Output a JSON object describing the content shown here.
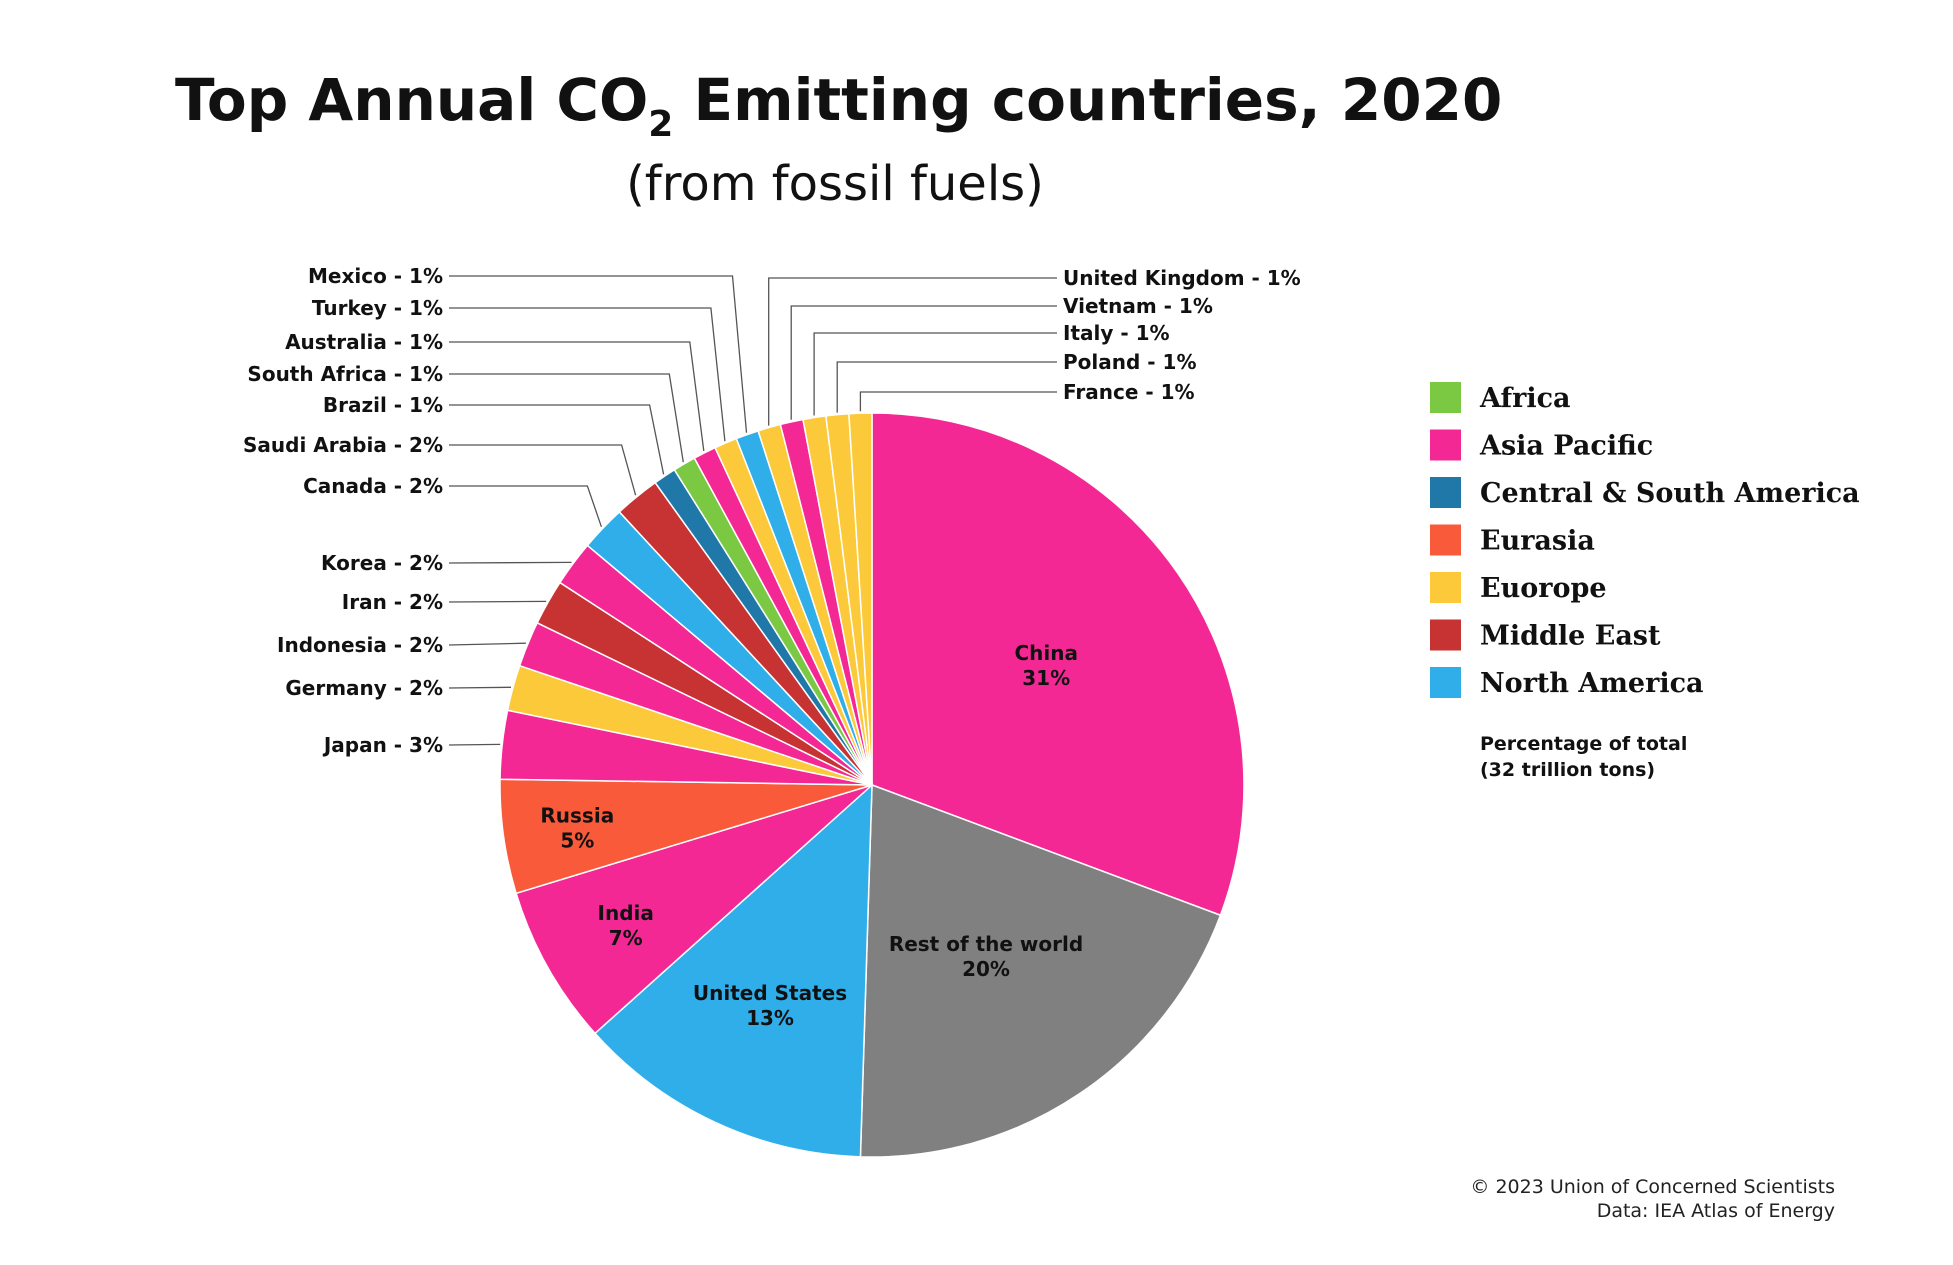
{
  "title_main": "Top Annual CO",
  "title_sub": "2",
  "title_rest": " Emitting countries, 2020",
  "subtitle": "(from fossil fuels)",
  "chart_data": {
    "type": "pie",
    "unit": "%",
    "slices": [
      {
        "label": "China",
        "value": 31,
        "region": "Asia Pacific"
      },
      {
        "label": "Rest of the world",
        "value": 20,
        "region": null
      },
      {
        "label": "United States",
        "value": 13,
        "region": "North America"
      },
      {
        "label": "India",
        "value": 7,
        "region": "Asia Pacific"
      },
      {
        "label": "Russia",
        "value": 5,
        "region": "Eurasia"
      },
      {
        "label": "Japan",
        "value": 3,
        "region": "Asia Pacific"
      },
      {
        "label": "Germany",
        "value": 2,
        "region": "Euorope"
      },
      {
        "label": "Indonesia",
        "value": 2,
        "region": "Asia Pacific"
      },
      {
        "label": "Iran",
        "value": 2,
        "region": "Middle East"
      },
      {
        "label": "Korea",
        "value": 2,
        "region": "Asia Pacific"
      },
      {
        "label": "Canada",
        "value": 2,
        "region": "North America"
      },
      {
        "label": "Saudi Arabia",
        "value": 2,
        "region": "Middle East"
      },
      {
        "label": "Brazil",
        "value": 1,
        "region": "Central & South America"
      },
      {
        "label": "South Africa",
        "value": 1,
        "region": "Africa"
      },
      {
        "label": "Australia",
        "value": 1,
        "region": "Asia Pacific"
      },
      {
        "label": "Turkey",
        "value": 1,
        "region": "Euorope"
      },
      {
        "label": "Mexico",
        "value": 1,
        "region": "North America"
      },
      {
        "label": "United Kingdom",
        "value": 1,
        "region": "Euorope"
      },
      {
        "label": "Vietnam",
        "value": 1,
        "region": "Asia Pacific"
      },
      {
        "label": "Italy",
        "value": 1,
        "region": "Euorope"
      },
      {
        "label": "Poland",
        "value": 1,
        "region": "Euorope"
      },
      {
        "label": "France",
        "value": 1,
        "region": "Euorope"
      }
    ],
    "legend": [
      {
        "name": "Africa",
        "color": "#7bc943"
      },
      {
        "name": "Asia Pacific",
        "color": "#f42894"
      },
      {
        "name": "Central & South America",
        "color": "#1f78a8"
      },
      {
        "name": "Eurasia",
        "color": "#f85a3a"
      },
      {
        "name": "Euorope",
        "color": "#fbc93a"
      },
      {
        "name": "Middle East",
        "color": "#c73232"
      },
      {
        "name": "North America",
        "color": "#2faeea"
      }
    ],
    "other_color": "#808080",
    "legend_position": "right"
  },
  "legend_note": [
    "Percentage of total",
    "(32 trillion tons)"
  ],
  "credits": [
    "© 2023 Union of Concerned Scientists",
    "Data: IEA Atlas of Energy"
  ]
}
